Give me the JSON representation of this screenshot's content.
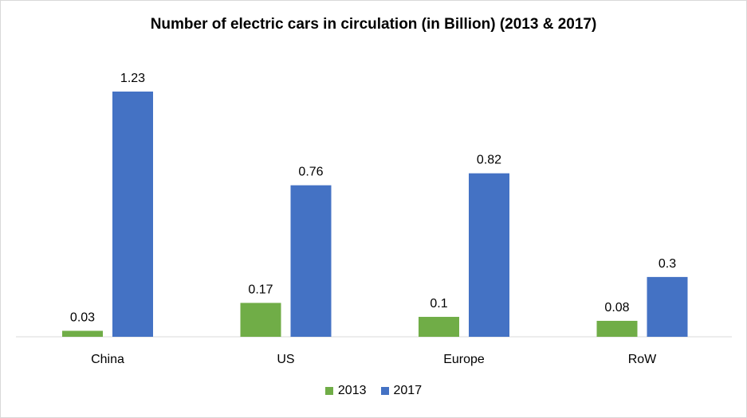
{
  "chart_data": {
    "type": "bar",
    "title": "Number of electric cars in circulation (in Billion) (2013 & 2017)",
    "categories": [
      "China",
      "US",
      "Europe",
      "RoW"
    ],
    "series": [
      {
        "name": "2013",
        "values": [
          0.03,
          0.17,
          0.1,
          0.08
        ],
        "labels": [
          "0.03",
          "0.17",
          "0.1",
          "0.08"
        ],
        "color": "#70AD47"
      },
      {
        "name": "2017",
        "values": [
          1.23,
          0.76,
          0.82,
          0.3
        ],
        "labels": [
          "1.23",
          "0.76",
          "0.82",
          "0.3"
        ],
        "color": "#4472C4"
      }
    ],
    "ylim": [
      0,
      1.23
    ],
    "grid": false,
    "legend": "bottom",
    "data_labels": true
  }
}
